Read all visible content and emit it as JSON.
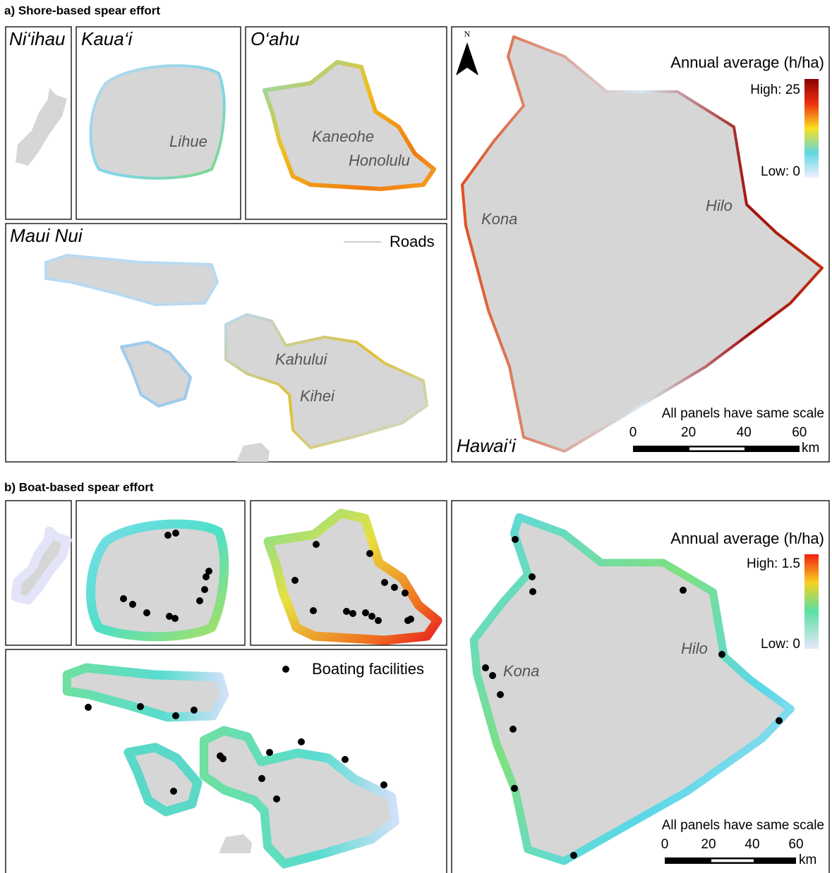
{
  "panel_a": {
    "title": "a) Shore-based spear effort",
    "panels": {
      "niihau": "Ni‘ihau",
      "kauai": "Kaua‘i",
      "oahu": "O‘ahu",
      "maui_nui": "Maui Nui",
      "hawaii": "Hawai‘i"
    },
    "towns": {
      "lihue": "Lihue",
      "kaneohe": "Kaneohe",
      "honolulu": "Honolulu",
      "kahului": "Kahului",
      "kihei": "Kihei",
      "kona": "Kona",
      "hilo": "Hilo"
    },
    "north": "N",
    "roads_legend": "Roads",
    "legend": {
      "title": "Annual average (h/ha)",
      "high": "High: 25",
      "low": "Low: 0"
    },
    "scale": {
      "note": "All panels have same scale",
      "ticks": [
        0,
        20,
        40,
        60
      ],
      "unit": "km"
    }
  },
  "panel_b": {
    "title": "b) Boat-based spear effort",
    "towns": {
      "kona": "Kona",
      "hilo": "Hilo"
    },
    "facilities_legend": "Boating facilities",
    "legend": {
      "title": "Annual average (h/ha)",
      "high": "High: 1.5",
      "low": "Low: 0"
    },
    "scale": {
      "note": "All panels have same scale",
      "ticks": [
        0,
        20,
        40,
        60
      ],
      "unit": "km"
    }
  }
}
